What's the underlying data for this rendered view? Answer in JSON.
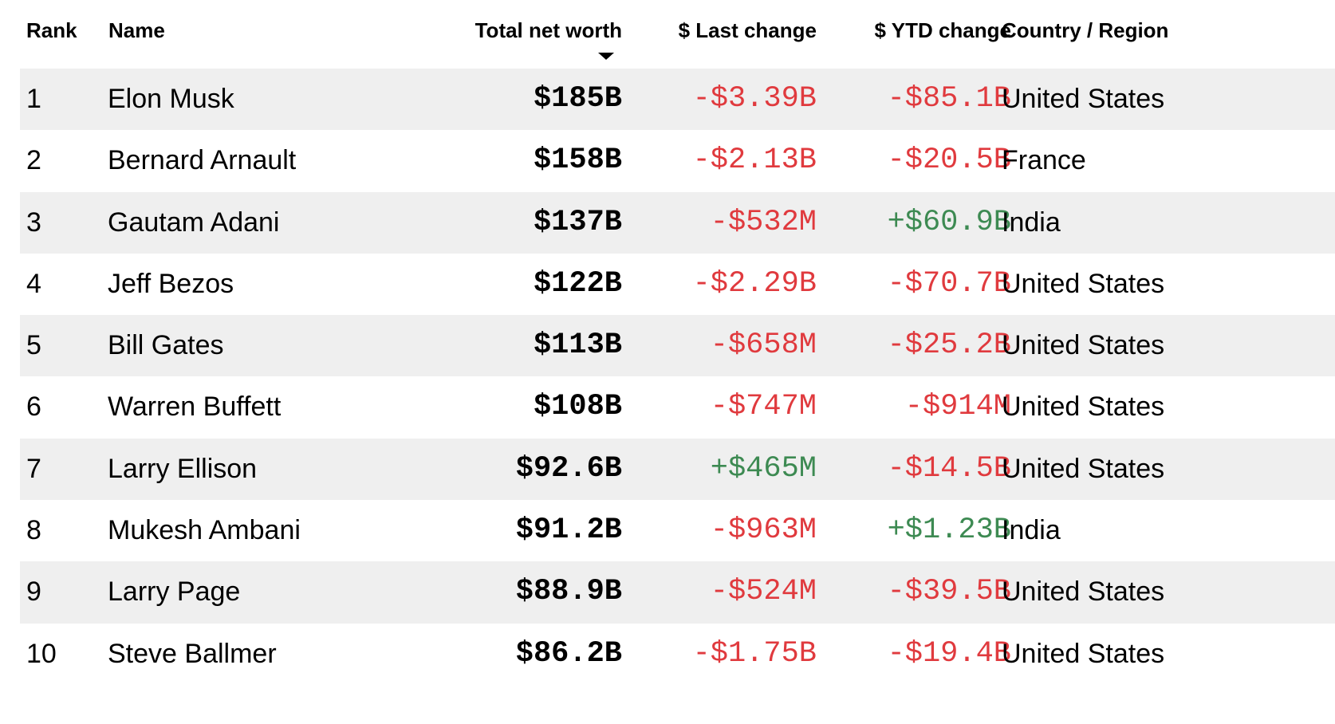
{
  "header": {
    "rank": "Rank",
    "name": "Name",
    "net_worth": "Total net worth",
    "last_change": "$ Last change",
    "ytd_change": "$ YTD change",
    "country": "Country / Region",
    "sort_icon": "sort-descending-icon"
  },
  "colors": {
    "negative": "#e03a3e",
    "positive": "#3d8a52",
    "row_shade": "#efefef"
  },
  "rows": [
    {
      "rank": "1",
      "name": "Elon Musk",
      "net_worth": "$185B",
      "last_change": "-$3.39B",
      "ytd_change": "-$85.1B",
      "country": "United States"
    },
    {
      "rank": "2",
      "name": "Bernard Arnault",
      "net_worth": "$158B",
      "last_change": "-$2.13B",
      "ytd_change": "-$20.5B",
      "country": "France"
    },
    {
      "rank": "3",
      "name": "Gautam Adani",
      "net_worth": "$137B",
      "last_change": "-$532M",
      "ytd_change": "+$60.9B",
      "country": "India"
    },
    {
      "rank": "4",
      "name": "Jeff Bezos",
      "net_worth": "$122B",
      "last_change": "-$2.29B",
      "ytd_change": "-$70.7B",
      "country": "United States"
    },
    {
      "rank": "5",
      "name": "Bill Gates",
      "net_worth": "$113B",
      "last_change": "-$658M",
      "ytd_change": "-$25.2B",
      "country": "United States"
    },
    {
      "rank": "6",
      "name": "Warren Buffett",
      "net_worth": "$108B",
      "last_change": "-$747M",
      "ytd_change": "-$914M",
      "country": "United States"
    },
    {
      "rank": "7",
      "name": "Larry Ellison",
      "net_worth": "$92.6B",
      "last_change": "+$465M",
      "ytd_change": "-$14.5B",
      "country": "United States"
    },
    {
      "rank": "8",
      "name": "Mukesh Ambani",
      "net_worth": "$91.2B",
      "last_change": "-$963M",
      "ytd_change": "+$1.23B",
      "country": "India"
    },
    {
      "rank": "9",
      "name": "Larry Page",
      "net_worth": "$88.9B",
      "last_change": "-$524M",
      "ytd_change": "-$39.5B",
      "country": "United States"
    },
    {
      "rank": "10",
      "name": "Steve Ballmer",
      "net_worth": "$86.2B",
      "last_change": "-$1.75B",
      "ytd_change": "-$19.4B",
      "country": "United States"
    }
  ]
}
